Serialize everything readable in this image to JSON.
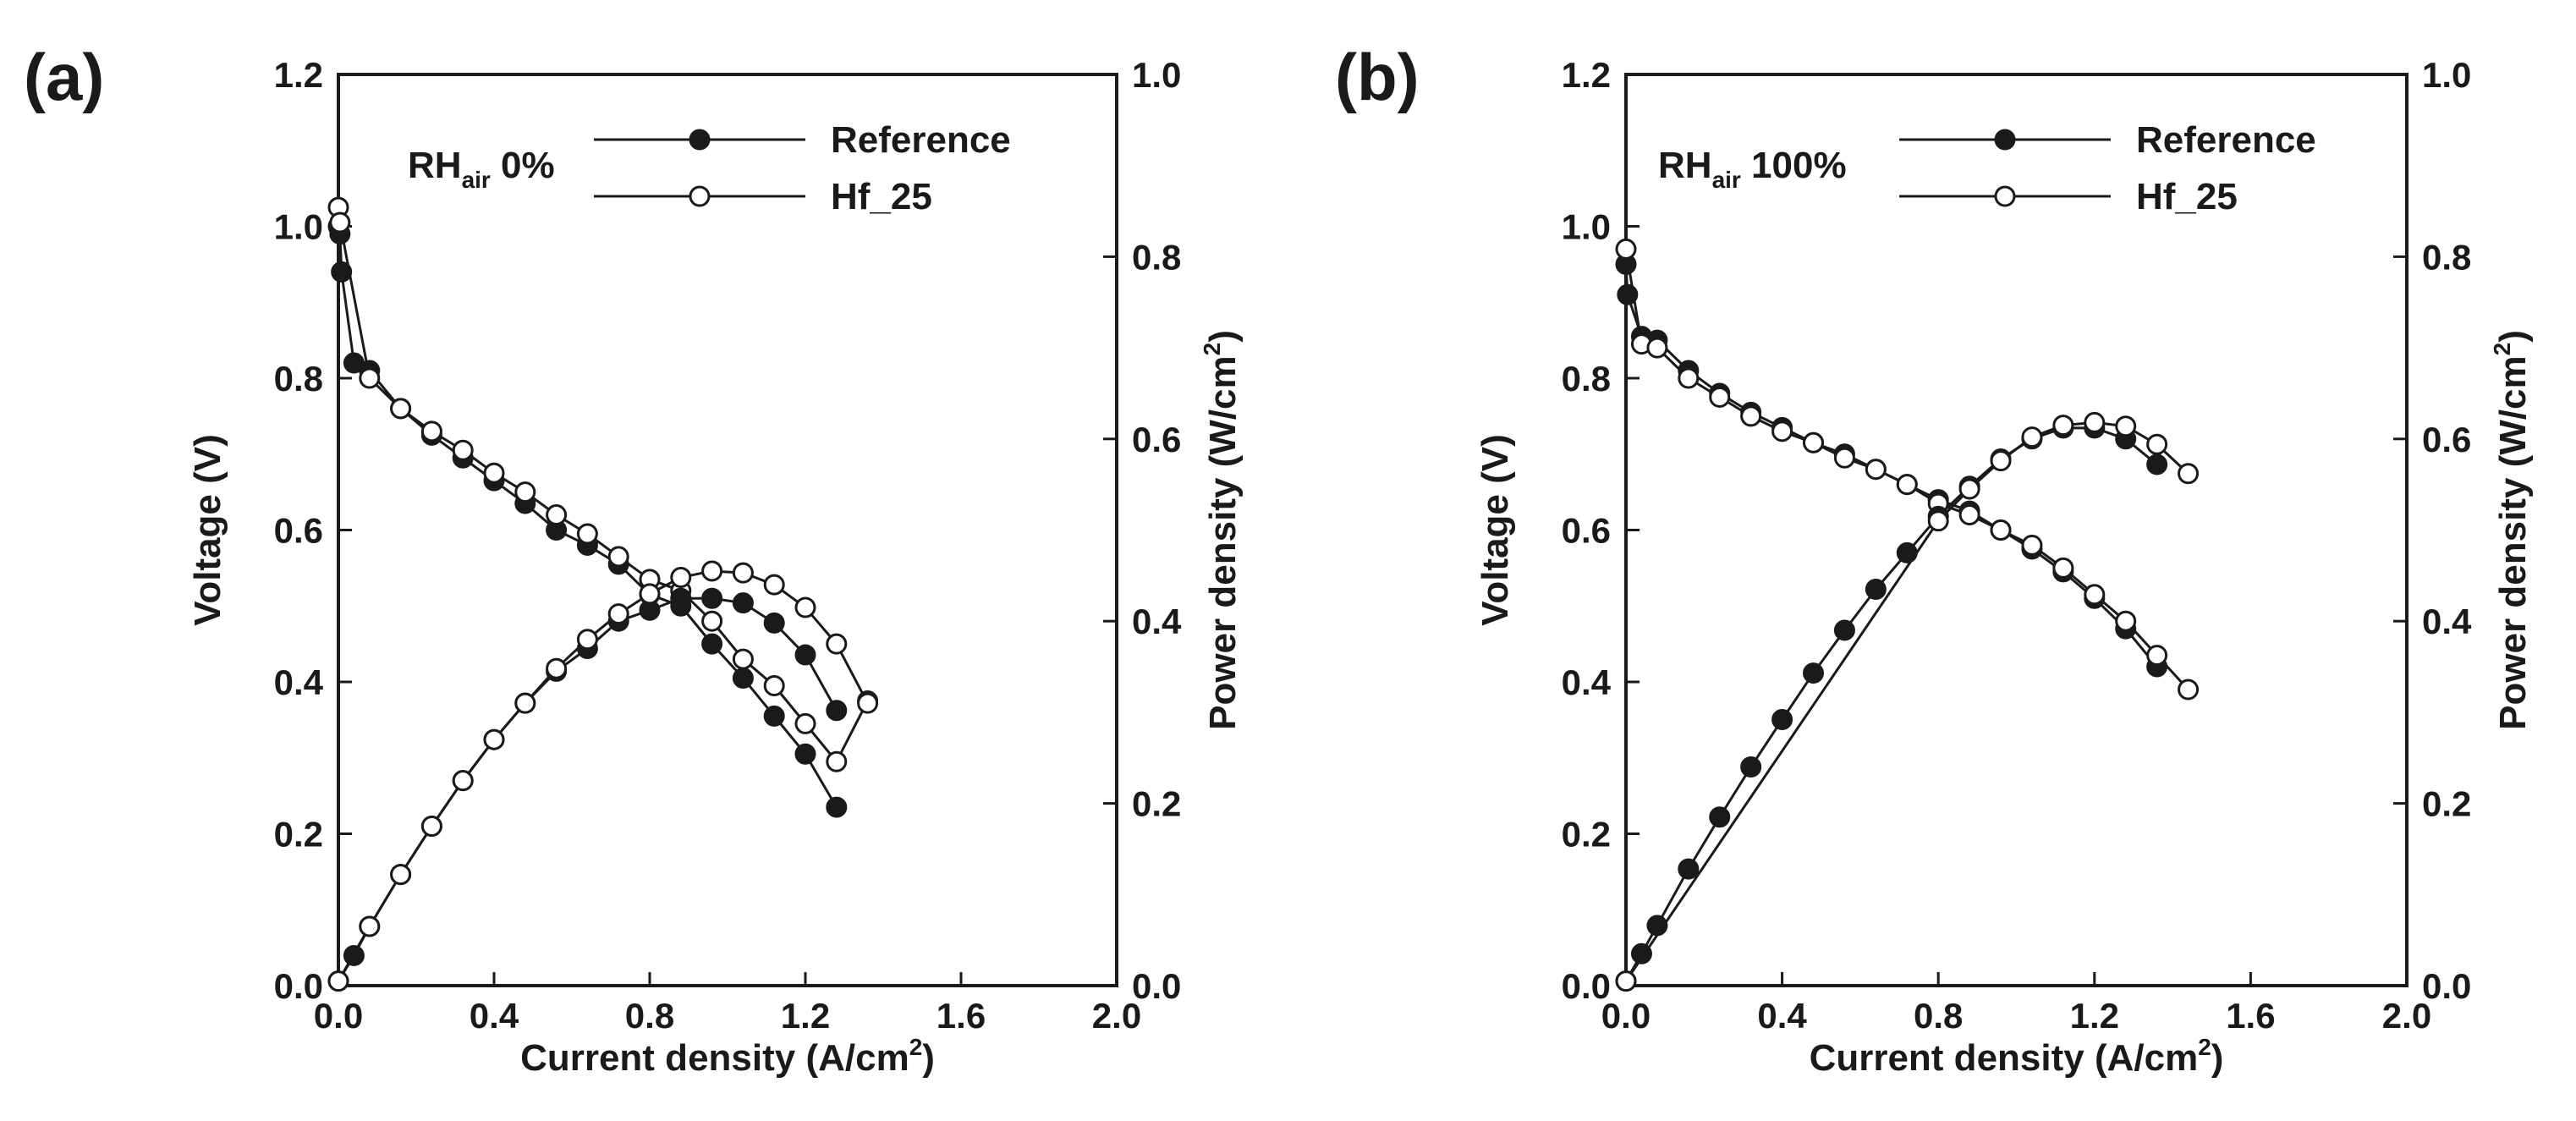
{
  "chart_data": [
    {
      "type": "line",
      "panel_label": "(a)",
      "condition": {
        "main": "RH",
        "subscript": "air",
        "value": "0%"
      },
      "xlabel": "Current density (A/cm",
      "xlabel_sup": "2",
      "xlabel_end": ")",
      "ylabel": "Voltage (V)",
      "y2label": "Power density (W/cm",
      "y2label_sup": "2",
      "y2label_end": ")",
      "xlim": [
        0,
        2.0
      ],
      "ylim": [
        0,
        1.2
      ],
      "y2lim": [
        0,
        1.0
      ],
      "xticks": [
        "0.0",
        "0.4",
        "0.8",
        "1.2",
        "1.6",
        "2.0"
      ],
      "yticks": [
        "0.0",
        "0.2",
        "0.4",
        "0.6",
        "0.8",
        "1.0",
        "1.2"
      ],
      "y2ticks": [
        "0.0",
        "0.2",
        "0.4",
        "0.6",
        "0.8",
        "1.0"
      ],
      "legend": [
        "Reference",
        "Hf_25"
      ],
      "series": [
        {
          "name": "Reference",
          "kind": "voltage",
          "axis": "left",
          "marker": "filled",
          "x": [
            0,
            0.004,
            0.008,
            0.04,
            0.08,
            0.16,
            0.24,
            0.32,
            0.4,
            0.48,
            0.56,
            0.64,
            0.72,
            0.8,
            0.88,
            0.96,
            1.04,
            1.12,
            1.2,
            1.28
          ],
          "y": [
            1.0,
            0.99,
            0.94,
            0.82,
            0.81,
            0.76,
            0.725,
            0.695,
            0.665,
            0.635,
            0.6,
            0.58,
            0.555,
            0.515,
            0.5,
            0.45,
            0.405,
            0.355,
            0.305,
            0.235
          ]
        },
        {
          "name": "Hf_25",
          "kind": "voltage",
          "axis": "left",
          "marker": "open",
          "x": [
            0,
            0.004,
            0.08,
            0.16,
            0.24,
            0.32,
            0.4,
            0.48,
            0.56,
            0.64,
            0.72,
            0.8,
            0.88,
            0.96,
            1.04,
            1.12,
            1.2,
            1.28,
            1.36
          ],
          "y": [
            1.025,
            1.005,
            0.8,
            0.76,
            0.73,
            0.705,
            0.675,
            0.65,
            0.62,
            0.595,
            0.565,
            0.535,
            0.52,
            0.48,
            0.43,
            0.395,
            0.345,
            0.295,
            0.375
          ]
        },
        {
          "name": "Reference",
          "kind": "power",
          "axis": "right",
          "marker": "filled",
          "x": [
            0,
            0.04,
            0.08,
            0.16,
            0.24,
            0.32,
            0.4,
            0.48,
            0.56,
            0.64,
            0.72,
            0.8,
            0.88,
            0.96,
            1.04,
            1.12,
            1.2,
            1.28
          ],
          "y": [
            0.005,
            0.033,
            0.065,
            0.122,
            0.175,
            0.225,
            0.27,
            0.31,
            0.345,
            0.37,
            0.4,
            0.412,
            0.425,
            0.425,
            0.42,
            0.398,
            0.363,
            0.302
          ]
        },
        {
          "name": "Hf_25",
          "kind": "power",
          "axis": "right",
          "marker": "open",
          "x": [
            0,
            0.08,
            0.16,
            0.24,
            0.32,
            0.4,
            0.48,
            0.56,
            0.64,
            0.72,
            0.8,
            0.88,
            0.96,
            1.04,
            1.12,
            1.2,
            1.28,
            1.36
          ],
          "y": [
            0.005,
            0.065,
            0.122,
            0.175,
            0.225,
            0.27,
            0.31,
            0.348,
            0.38,
            0.408,
            0.43,
            0.448,
            0.455,
            0.453,
            0.44,
            0.415,
            0.375,
            0.31
          ]
        }
      ]
    },
    {
      "type": "line",
      "panel_label": "(b)",
      "condition": {
        "main": "RH",
        "subscript": "air",
        "value": "100%"
      },
      "xlabel": "Current density (A/cm",
      "xlabel_sup": "2",
      "xlabel_end": ")",
      "ylabel": "Voltage (V)",
      "y2label": "Power density (W/cm",
      "y2label_sup": "2",
      "y2label_end": ")",
      "xlim": [
        0,
        2.0
      ],
      "ylim": [
        0,
        1.2
      ],
      "y2lim": [
        0,
        1.0
      ],
      "xticks": [
        "0.0",
        "0.4",
        "0.8",
        "1.2",
        "1.6",
        "2.0"
      ],
      "yticks": [
        "0.0",
        "0.2",
        "0.4",
        "0.6",
        "0.8",
        "1.0",
        "1.2"
      ],
      "y2ticks": [
        "0.0",
        "0.2",
        "0.4",
        "0.6",
        "0.8",
        "1.0"
      ],
      "legend": [
        "Reference",
        "Hf_25"
      ],
      "series": [
        {
          "name": "Reference",
          "kind": "voltage",
          "axis": "left",
          "marker": "filled",
          "x": [
            0,
            0.004,
            0.04,
            0.08,
            0.16,
            0.24,
            0.32,
            0.4,
            0.48,
            0.56,
            0.64,
            0.72,
            0.8,
            0.88,
            0.96,
            1.04,
            1.12,
            1.2,
            1.28,
            1.36
          ],
          "y": [
            0.95,
            0.91,
            0.855,
            0.85,
            0.81,
            0.78,
            0.755,
            0.735,
            0.715,
            0.7,
            0.68,
            0.66,
            0.64,
            0.625,
            0.6,
            0.575,
            0.545,
            0.51,
            0.47,
            0.42
          ]
        },
        {
          "name": "Hf_25",
          "kind": "voltage",
          "axis": "left",
          "marker": "open",
          "x": [
            0,
            0.04,
            0.08,
            0.16,
            0.24,
            0.32,
            0.4,
            0.48,
            0.56,
            0.64,
            0.72,
            0.8,
            0.88,
            0.96,
            1.04,
            1.12,
            1.2,
            1.28,
            1.36,
            1.44
          ],
          "y": [
            0.97,
            0.845,
            0.84,
            0.8,
            0.775,
            0.75,
            0.73,
            0.715,
            0.695,
            0.68,
            0.66,
            0.635,
            0.62,
            0.6,
            0.58,
            0.55,
            0.515,
            0.48,
            0.435,
            0.39
          ]
        },
        {
          "name": "Reference",
          "kind": "power",
          "axis": "right",
          "marker": "filled",
          "x": [
            0,
            0.04,
            0.08,
            0.16,
            0.24,
            0.32,
            0.4,
            0.48,
            0.56,
            0.64,
            0.72,
            0.8,
            0.88,
            0.96,
            1.04,
            1.12,
            1.2,
            1.28,
            1.36
          ],
          "y": [
            0.005,
            0.035,
            0.066,
            0.128,
            0.185,
            0.24,
            0.292,
            0.343,
            0.39,
            0.435,
            0.475,
            0.515,
            0.548,
            0.578,
            0.6,
            0.612,
            0.612,
            0.6,
            0.572
          ]
        },
        {
          "name": "Hf_25",
          "kind": "power",
          "axis": "right",
          "marker": "open",
          "x": [
            0,
            0.8,
            0.88,
            0.96,
            1.04,
            1.12,
            1.2,
            1.28,
            1.36,
            1.44
          ],
          "y": [
            0.005,
            0.51,
            0.545,
            0.576,
            0.602,
            0.615,
            0.618,
            0.614,
            0.594,
            0.562
          ]
        }
      ]
    }
  ]
}
